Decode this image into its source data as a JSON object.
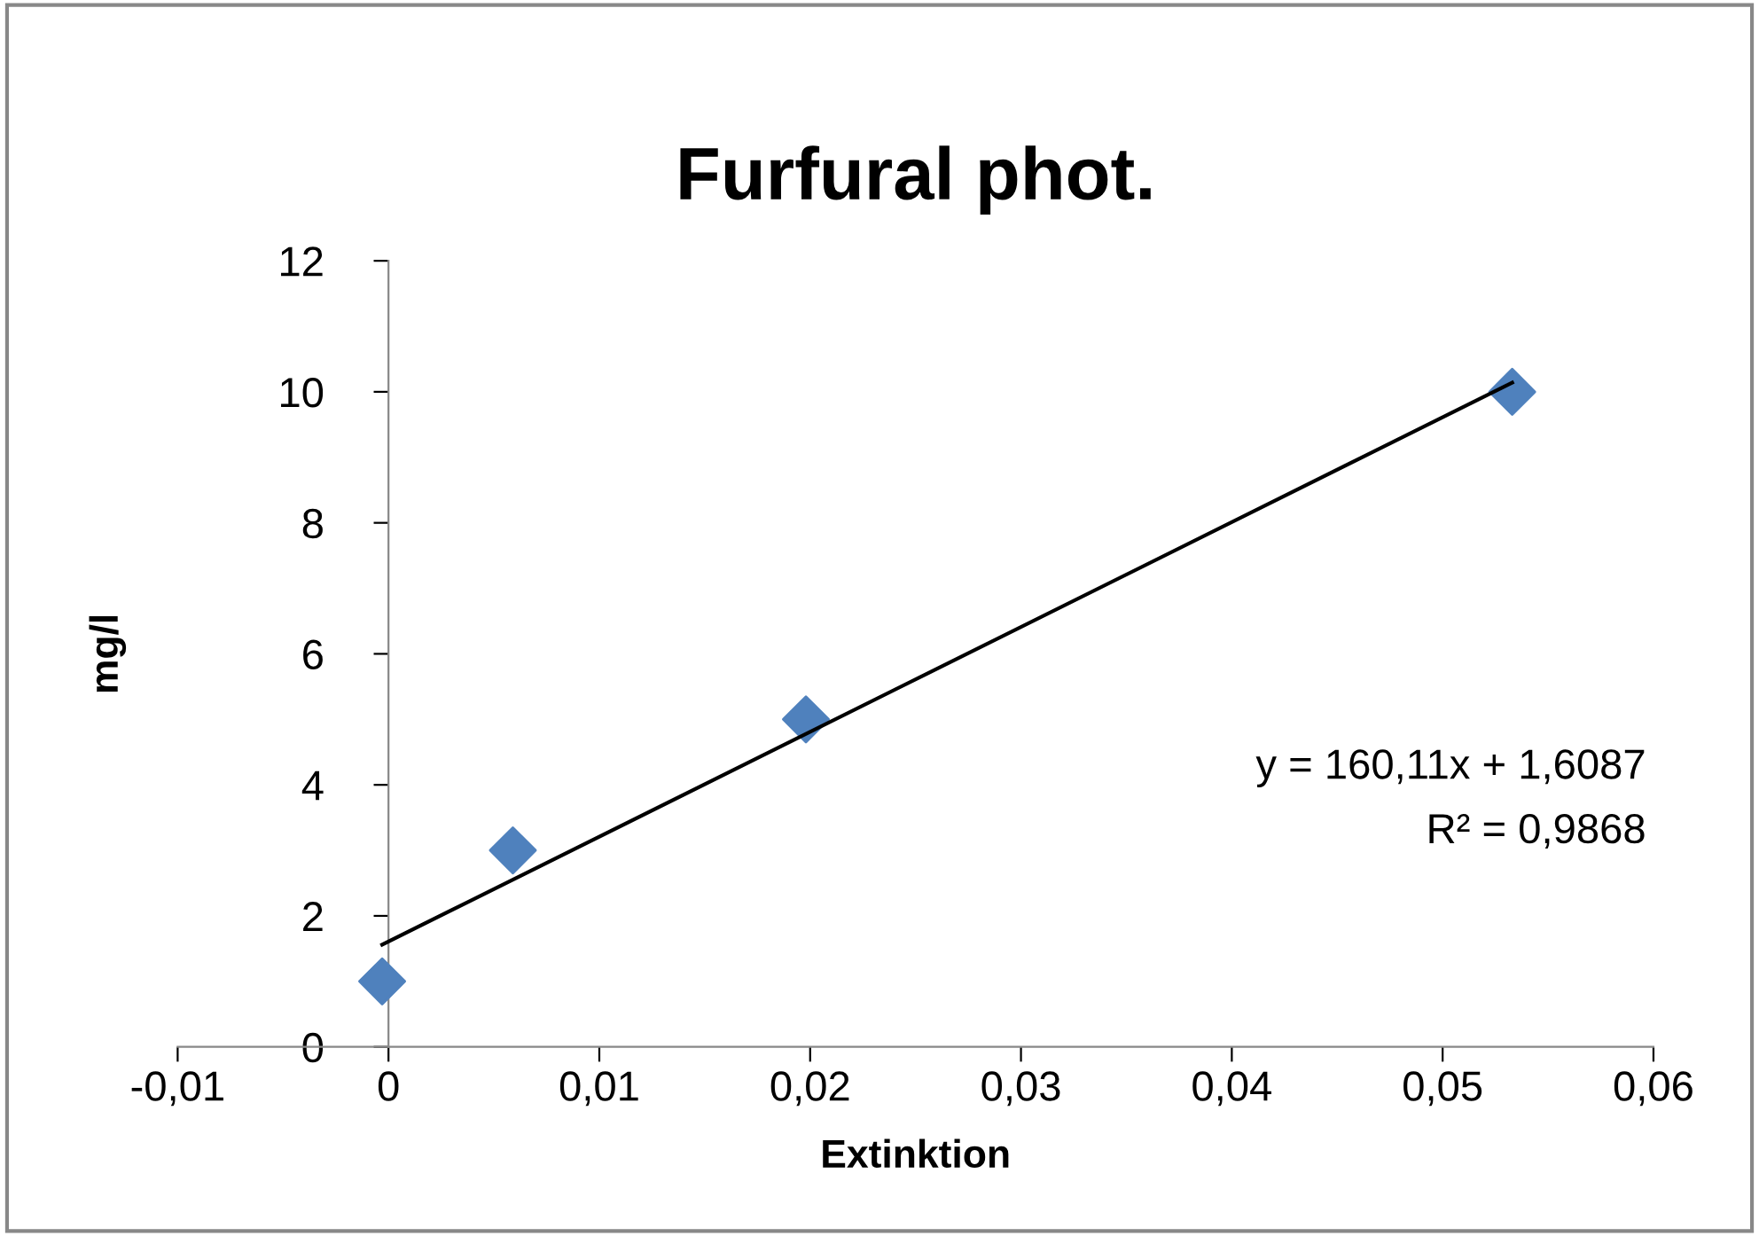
{
  "chart_data": {
    "type": "scatter",
    "title": "Furfural phot.",
    "xlabel": "Extinktion",
    "ylabel": "mg/l",
    "xlim": [
      -0.01,
      0.06
    ],
    "ylim": [
      0,
      12
    ],
    "xticks": [
      {
        "value": -0.01,
        "label": "-0,01"
      },
      0,
      {
        "value": 0.01,
        "label": "0,01"
      },
      {
        "value": 0.02,
        "label": "0,02"
      },
      {
        "value": 0.03,
        "label": "0,03"
      },
      {
        "value": 0.04,
        "label": "0,04"
      },
      {
        "value": 0.05,
        "label": "0,05"
      },
      {
        "value": 0.06,
        "label": "0,06"
      }
    ],
    "yticks": [
      0,
      2,
      4,
      6,
      8,
      10,
      12
    ],
    "grid": false,
    "legend": false,
    "marker": "diamond",
    "series": [
      {
        "color": "#4f81bd",
        "x": [
          -0.0003,
          0.0059,
          0.0198,
          0.0533
        ],
        "values": [
          1,
          3,
          5,
          10
        ]
      },
      {
        "type": "line",
        "color": "#000000",
        "x": [
          -0.0003,
          0.0533
        ],
        "values": [
          1.56,
          10.14
        ],
        "marker": "none",
        "line_style": "solid"
      }
    ],
    "annotations": [
      "y = 160,11x + 1,6087",
      "R² = 0,9868"
    ]
  }
}
